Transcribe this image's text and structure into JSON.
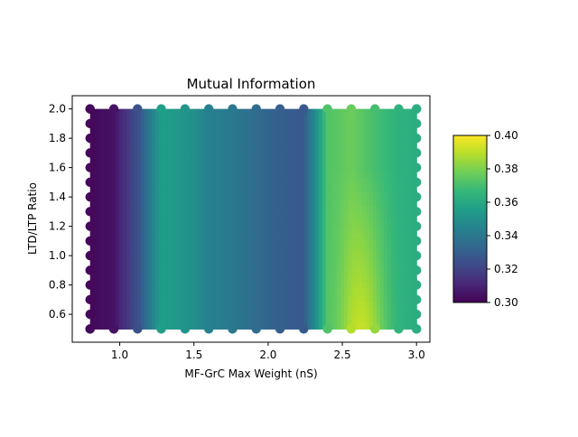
{
  "chart_data": {
    "type": "heatmap",
    "title": "Mutual Information",
    "xlabel": "MF-GrC Max Weight (nS)",
    "ylabel": "LTD/LTP Ratio",
    "xlim": [
      0.68,
      3.09
    ],
    "ylim": [
      0.41,
      2.09
    ],
    "x_ticks": [
      1.0,
      1.5,
      2.0,
      2.5,
      3.0
    ],
    "x_tick_labels": [
      "1.0",
      "1.5",
      "2.0",
      "2.5",
      "3.0"
    ],
    "y_ticks": [
      0.6,
      0.8,
      1.0,
      1.2,
      1.4,
      1.6,
      1.8,
      2.0
    ],
    "y_tick_labels": [
      "0.6",
      "0.8",
      "1.0",
      "1.2",
      "1.4",
      "1.6",
      "1.8",
      "2.0"
    ],
    "colorbar": {
      "min": 0.3,
      "max": 0.4,
      "ticks": [
        0.3,
        0.32,
        0.34,
        0.36,
        0.38,
        0.4
      ],
      "tick_labels": [
        "0.30",
        "0.32",
        "0.34",
        "0.36",
        "0.38",
        "0.40"
      ],
      "colormap": "viridis"
    },
    "grid": false,
    "x": [
      0.8,
      0.96,
      1.12,
      1.28,
      1.44,
      1.6,
      1.76,
      1.92,
      2.08,
      2.24,
      2.4,
      2.56,
      2.72,
      2.88,
      3.0
    ],
    "y": [
      0.5,
      0.6,
      0.7,
      0.8,
      0.9,
      1.0,
      1.1,
      1.2,
      1.3,
      1.4,
      1.5,
      1.6,
      1.7,
      1.8,
      1.9,
      2.0
    ],
    "column_values": [
      0.302,
      0.305,
      0.325,
      0.356,
      0.352,
      0.344,
      0.34,
      0.335,
      0.33,
      0.328,
      0.372,
      0.377,
      0.37,
      0.364,
      0.362
    ],
    "notes": "Values are shown as a smooth interpolated surface with scatter markers at the sampled grid points; lower-right area (x≈2.5–2.8, y≤1.2) peaks near 0.39."
  },
  "colors": {
    "viridis": [
      "#440154",
      "#482878",
      "#3e4989",
      "#31688e",
      "#26828e",
      "#1f9e89",
      "#35b779",
      "#6ece58",
      "#b5de2b",
      "#fde725"
    ]
  }
}
